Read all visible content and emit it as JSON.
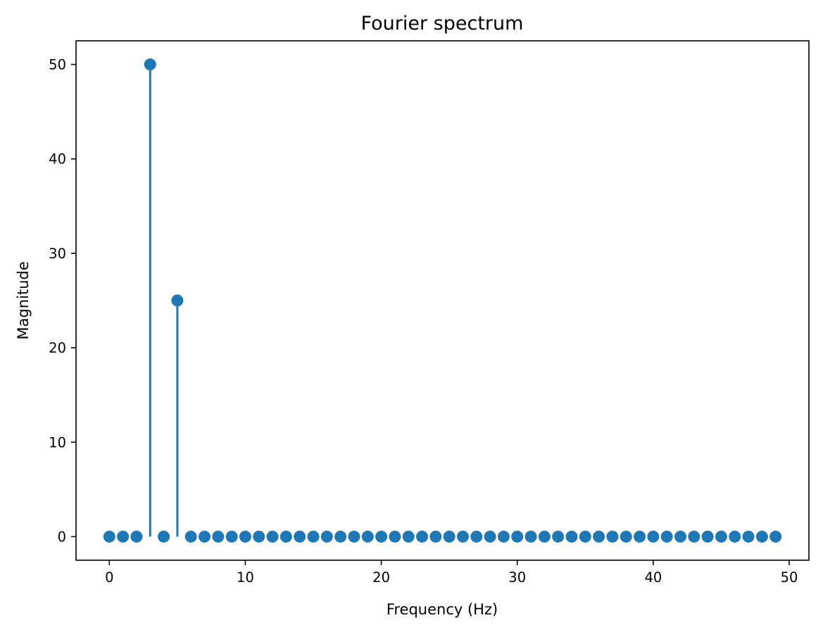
{
  "chart_data": {
    "type": "stem",
    "title": "Fourier spectrum",
    "xlabel": "Frequency (Hz)",
    "ylabel": "Magnitude",
    "xlim": [
      -2.45,
      51.45
    ],
    "ylim": [
      -2.5,
      52.5
    ],
    "xticks": [
      0,
      10,
      20,
      30,
      40,
      50
    ],
    "yticks": [
      0,
      10,
      20,
      30,
      40,
      50
    ],
    "grid": false,
    "series": [
      {
        "color": "#1f77b4",
        "x": [
          0,
          1,
          2,
          3,
          4,
          5,
          6,
          7,
          8,
          9,
          10,
          11,
          12,
          13,
          14,
          15,
          16,
          17,
          18,
          19,
          20,
          21,
          22,
          23,
          24,
          25,
          26,
          27,
          28,
          29,
          30,
          31,
          32,
          33,
          34,
          35,
          36,
          37,
          38,
          39,
          40,
          41,
          42,
          43,
          44,
          45,
          46,
          47,
          48,
          49
        ],
        "y": [
          0,
          0,
          0,
          50,
          0,
          25,
          0,
          0,
          0,
          0,
          0,
          0,
          0,
          0,
          0,
          0,
          0,
          0,
          0,
          0,
          0,
          0,
          0,
          0,
          0,
          0,
          0,
          0,
          0,
          0,
          0,
          0,
          0,
          0,
          0,
          0,
          0,
          0,
          0,
          0,
          0,
          0,
          0,
          0,
          0,
          0,
          0,
          0,
          0,
          0
        ]
      }
    ]
  }
}
